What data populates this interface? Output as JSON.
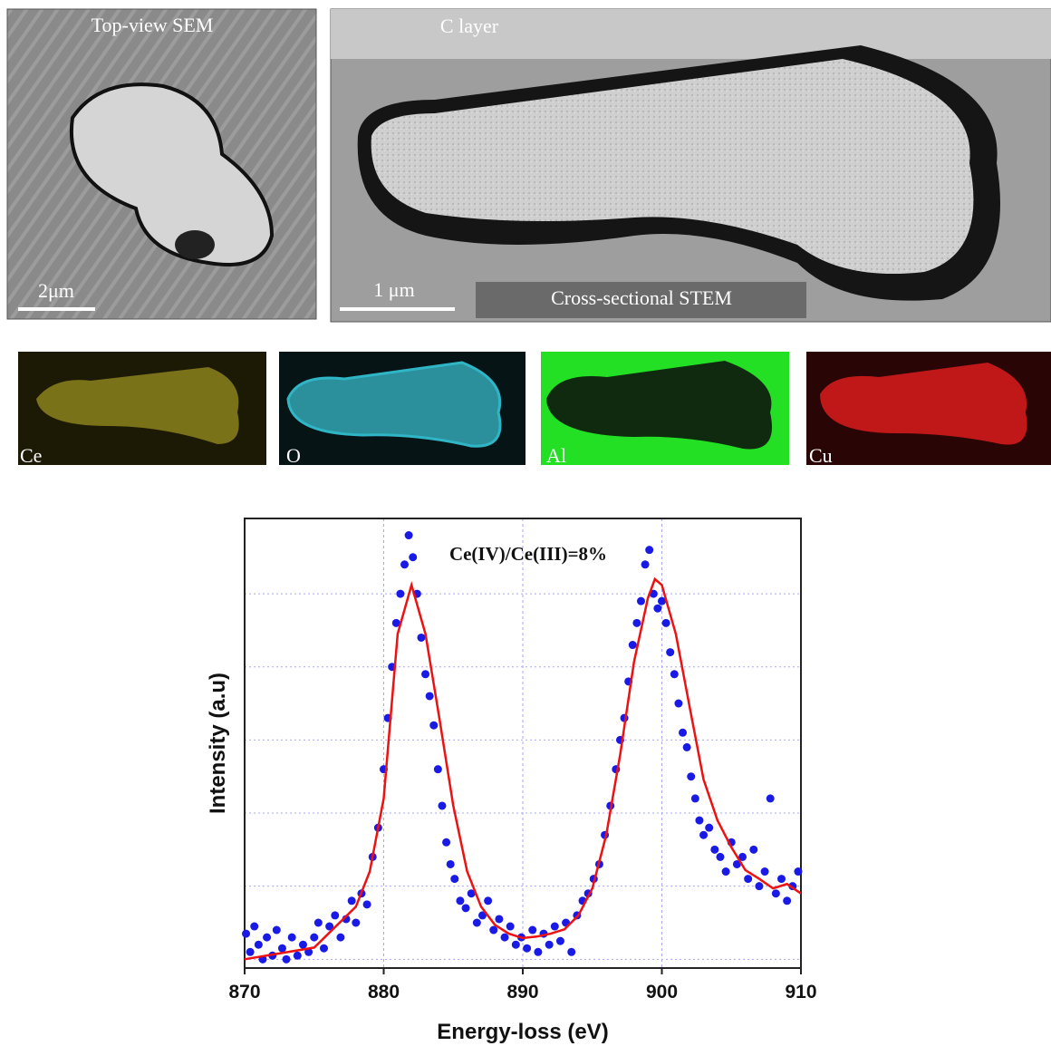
{
  "panels": {
    "sem_title": "Top-view SEM",
    "sem_scale": "2μm",
    "stem_layer": "C layer",
    "stem_scale": "1 μm",
    "stem_title": "Cross-sectional STEM",
    "maps": [
      "Ce",
      "O",
      "Al",
      "Cu"
    ]
  },
  "chart_data": {
    "type": "scatter",
    "annotation": "Ce(IV)/Ce(III)=8%",
    "x_label": "Energy-loss (eV)",
    "y_label": "Intensity (a.u)",
    "xlim": [
      870,
      910
    ],
    "xticks": [
      870,
      880,
      890,
      900,
      910
    ],
    "ylim": [
      -0.12,
      6.03
    ],
    "yticks": [
      0,
      1,
      2,
      3,
      4,
      5
    ],
    "grid": true,
    "series": [
      {
        "mode": "markers",
        "color": "#1a1ae6",
        "x": [
          870.1,
          870.4,
          870.7,
          871.0,
          871.3,
          871.6,
          872.0,
          872.3,
          872.7,
          873.0,
          873.4,
          873.8,
          874.2,
          874.6,
          875.0,
          875.3,
          875.7,
          876.1,
          876.5,
          876.9,
          877.3,
          877.7,
          878.0,
          878.4,
          878.8,
          879.2,
          879.6,
          880.0,
          880.3,
          880.6,
          880.9,
          881.2,
          881.5,
          881.8,
          882.1,
          882.4,
          882.7,
          883.0,
          883.3,
          883.6,
          883.9,
          884.2,
          884.5,
          884.8,
          885.1,
          885.5,
          885.9,
          886.3,
          886.7,
          887.1,
          887.5,
          887.9,
          888.3,
          888.7,
          889.1,
          889.5,
          889.9,
          890.3,
          890.7,
          891.1,
          891.5,
          891.9,
          892.3,
          892.7,
          893.1,
          893.5,
          893.9,
          894.3,
          894.7,
          895.1,
          895.5,
          895.9,
          896.3,
          896.7,
          897.0,
          897.3,
          897.6,
          897.9,
          898.2,
          898.5,
          898.8,
          899.1,
          899.4,
          899.7,
          900.0,
          900.3,
          900.6,
          900.9,
          901.2,
          901.5,
          901.8,
          902.1,
          902.4,
          902.7,
          903.0,
          903.4,
          903.8,
          904.2,
          904.6,
          905.0,
          905.4,
          905.8,
          906.2,
          906.6,
          907.0,
          907.4,
          907.8,
          908.2,
          908.6,
          909.0,
          909.4,
          909.8
        ],
        "values": [
          0.35,
          0.1,
          0.45,
          0.2,
          0.0,
          0.3,
          0.05,
          0.4,
          0.15,
          0.0,
          0.3,
          0.05,
          0.2,
          0.1,
          0.3,
          0.5,
          0.15,
          0.45,
          0.6,
          0.3,
          0.55,
          0.8,
          0.5,
          0.9,
          0.75,
          1.4,
          1.8,
          2.6,
          3.3,
          4.0,
          4.6,
          5.0,
          5.4,
          5.8,
          5.5,
          5.0,
          4.4,
          3.9,
          3.6,
          3.2,
          2.6,
          2.1,
          1.6,
          1.3,
          1.1,
          0.8,
          0.7,
          0.9,
          0.5,
          0.6,
          0.8,
          0.4,
          0.55,
          0.3,
          0.45,
          0.2,
          0.3,
          0.15,
          0.4,
          0.1,
          0.35,
          0.2,
          0.45,
          0.25,
          0.5,
          0.1,
          0.6,
          0.8,
          0.9,
          1.1,
          1.3,
          1.7,
          2.1,
          2.6,
          3.0,
          3.3,
          3.8,
          4.3,
          4.6,
          4.9,
          5.4,
          5.6,
          5.0,
          4.8,
          4.9,
          4.6,
          4.2,
          3.9,
          3.5,
          3.1,
          2.9,
          2.5,
          2.2,
          1.9,
          1.7,
          1.8,
          1.5,
          1.4,
          1.2,
          1.6,
          1.3,
          1.4,
          1.1,
          1.5,
          1.0,
          1.2,
          2.2,
          0.9,
          1.1,
          0.8,
          1.0,
          1.2
        ]
      },
      {
        "mode": "line",
        "color": "#ee1111",
        "x": [
          870,
          875,
          878,
          879,
          880,
          881,
          882,
          883,
          884,
          885,
          886,
          887,
          888,
          889,
          890,
          891,
          892,
          893,
          894,
          895,
          896,
          897,
          898,
          899,
          899.5,
          900,
          901,
          902,
          903,
          904,
          905,
          906,
          907,
          908,
          909,
          910
        ],
        "values": [
          0,
          0.16,
          0.72,
          1.2,
          2.2,
          4.45,
          5.12,
          4.45,
          3.3,
          2.1,
          1.2,
          0.72,
          0.47,
          0.35,
          0.29,
          0.31,
          0.35,
          0.41,
          0.6,
          0.97,
          1.7,
          2.8,
          4.07,
          4.94,
          5.2,
          5.12,
          4.45,
          3.45,
          2.46,
          1.9,
          1.53,
          1.22,
          1.1,
          0.97,
          1.03,
          0.9
        ]
      }
    ]
  }
}
